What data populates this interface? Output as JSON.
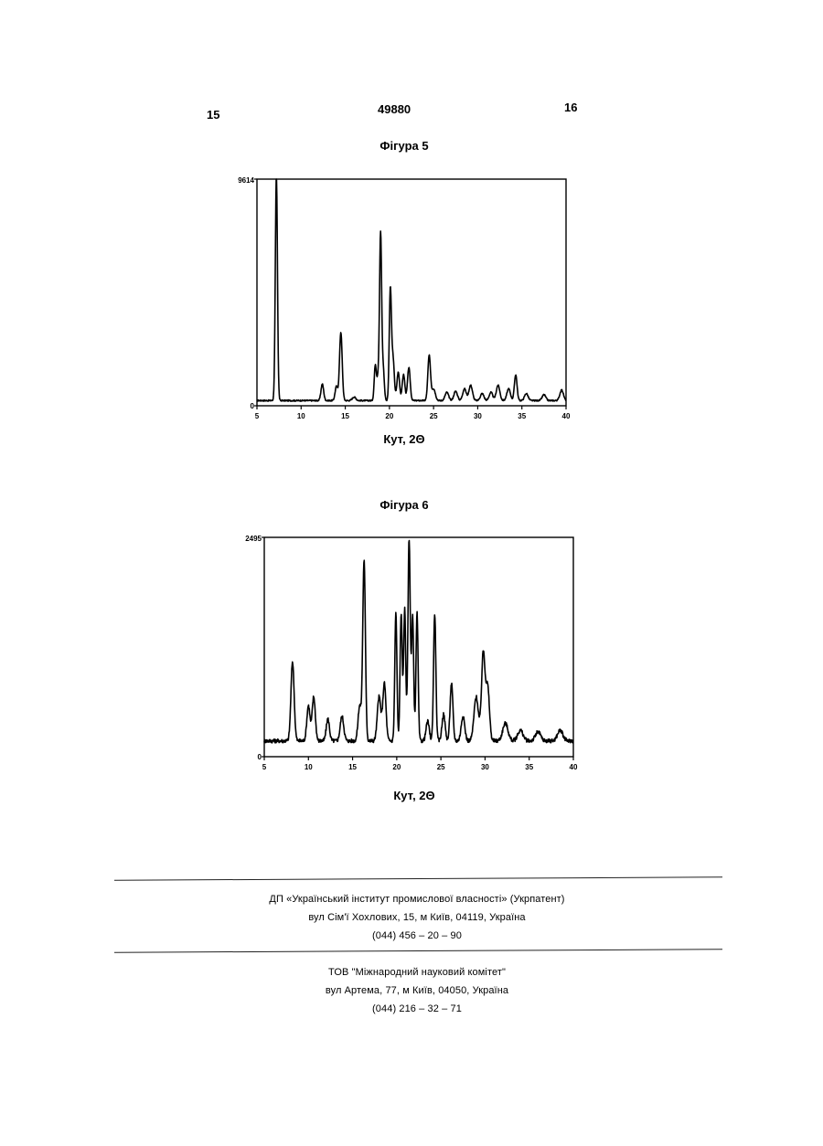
{
  "header": {
    "page_left": "15",
    "document_number": "49880",
    "page_right": "16"
  },
  "figures": [
    {
      "title": "Фігура 5",
      "xlabel": "Кут, 2Θ",
      "chart_data": {
        "type": "line",
        "title": "Фігура 5",
        "xlabel": "Кут, 2Θ",
        "ylabel": "",
        "xlim": [
          5,
          40
        ],
        "ylim": [
          0,
          9614
        ],
        "xticks": [
          5,
          10,
          15,
          20,
          25,
          30,
          35,
          40
        ],
        "ytick_labels": [
          "0",
          "9614"
        ],
        "baseline": 220,
        "peaks": [
          {
            "x": 7.2,
            "y": 9614,
            "w": 0.12
          },
          {
            "x": 12.4,
            "y": 700,
            "w": 0.15
          },
          {
            "x": 14.0,
            "y": 600,
            "w": 0.15
          },
          {
            "x": 14.5,
            "y": 2900,
            "w": 0.15
          },
          {
            "x": 16.0,
            "y": 150,
            "w": 0.2
          },
          {
            "x": 18.4,
            "y": 1500,
            "w": 0.12
          },
          {
            "x": 18.7,
            "y": 900,
            "w": 0.12
          },
          {
            "x": 19.0,
            "y": 7100,
            "w": 0.12
          },
          {
            "x": 19.3,
            "y": 1300,
            "w": 0.12
          },
          {
            "x": 20.1,
            "y": 4600,
            "w": 0.12
          },
          {
            "x": 20.4,
            "y": 1800,
            "w": 0.15
          },
          {
            "x": 21.0,
            "y": 1200,
            "w": 0.15
          },
          {
            "x": 21.6,
            "y": 1100,
            "w": 0.15
          },
          {
            "x": 22.2,
            "y": 1400,
            "w": 0.15
          },
          {
            "x": 24.5,
            "y": 1900,
            "w": 0.15
          },
          {
            "x": 25.0,
            "y": 500,
            "w": 0.2
          },
          {
            "x": 26.5,
            "y": 350,
            "w": 0.2
          },
          {
            "x": 27.5,
            "y": 400,
            "w": 0.2
          },
          {
            "x": 28.5,
            "y": 500,
            "w": 0.2
          },
          {
            "x": 29.2,
            "y": 650,
            "w": 0.2
          },
          {
            "x": 30.5,
            "y": 300,
            "w": 0.2
          },
          {
            "x": 31.5,
            "y": 350,
            "w": 0.2
          },
          {
            "x": 32.3,
            "y": 650,
            "w": 0.2
          },
          {
            "x": 33.5,
            "y": 500,
            "w": 0.2
          },
          {
            "x": 34.3,
            "y": 1100,
            "w": 0.15
          },
          {
            "x": 35.5,
            "y": 300,
            "w": 0.2
          },
          {
            "x": 37.5,
            "y": 250,
            "w": 0.2
          },
          {
            "x": 39.5,
            "y": 450,
            "w": 0.2
          }
        ]
      }
    },
    {
      "title": "Фігура 6",
      "xlabel": "Кут, 2Θ",
      "chart_data": {
        "type": "line",
        "title": "Фігура 6",
        "xlabel": "Кут, 2Θ",
        "ylabel": "",
        "xlim": [
          5,
          40
        ],
        "ylim": [
          0,
          2495
        ],
        "xticks": [
          5,
          10,
          15,
          20,
          25,
          30,
          35,
          40
        ],
        "ytick_labels": [
          "0",
          "2495"
        ],
        "baseline": 180,
        "peaks": [
          {
            "x": 8.2,
            "y": 900,
            "w": 0.18
          },
          {
            "x": 10.0,
            "y": 400,
            "w": 0.18
          },
          {
            "x": 10.6,
            "y": 500,
            "w": 0.18
          },
          {
            "x": 12.2,
            "y": 250,
            "w": 0.18
          },
          {
            "x": 13.8,
            "y": 280,
            "w": 0.2
          },
          {
            "x": 15.8,
            "y": 400,
            "w": 0.18
          },
          {
            "x": 16.3,
            "y": 2050,
            "w": 0.15
          },
          {
            "x": 18.0,
            "y": 500,
            "w": 0.2
          },
          {
            "x": 18.6,
            "y": 650,
            "w": 0.18
          },
          {
            "x": 19.9,
            "y": 1450,
            "w": 0.12
          },
          {
            "x": 20.5,
            "y": 1450,
            "w": 0.12
          },
          {
            "x": 20.9,
            "y": 1500,
            "w": 0.12
          },
          {
            "x": 21.4,
            "y": 2300,
            "w": 0.13
          },
          {
            "x": 21.8,
            "y": 1400,
            "w": 0.12
          },
          {
            "x": 22.3,
            "y": 1450,
            "w": 0.12
          },
          {
            "x": 23.5,
            "y": 220,
            "w": 0.18
          },
          {
            "x": 24.3,
            "y": 1450,
            "w": 0.13
          },
          {
            "x": 25.3,
            "y": 300,
            "w": 0.18
          },
          {
            "x": 26.2,
            "y": 650,
            "w": 0.16
          },
          {
            "x": 27.5,
            "y": 280,
            "w": 0.2
          },
          {
            "x": 29.0,
            "y": 500,
            "w": 0.25
          },
          {
            "x": 29.8,
            "y": 1000,
            "w": 0.2
          },
          {
            "x": 30.3,
            "y": 600,
            "w": 0.2
          },
          {
            "x": 32.3,
            "y": 200,
            "w": 0.3
          },
          {
            "x": 34.0,
            "y": 120,
            "w": 0.3
          },
          {
            "x": 36.0,
            "y": 100,
            "w": 0.3
          },
          {
            "x": 38.5,
            "y": 120,
            "w": 0.3
          }
        ]
      }
    }
  ],
  "footer": {
    "block1": {
      "line1": "ДП «Український інститут промислової власності» (Укрпатент)",
      "line2": "вул  Сім'ї Хохлових, 15, м  Київ, 04119, Україна",
      "line3": "(044) 456 – 20 – 90"
    },
    "block2": {
      "line1": "ТОВ \"Міжнародний науковий комітет\"",
      "line2": "вул  Артема, 77, м  Київ, 04050, Україна",
      "line3": "(044) 216 – 32 – 71"
    }
  }
}
